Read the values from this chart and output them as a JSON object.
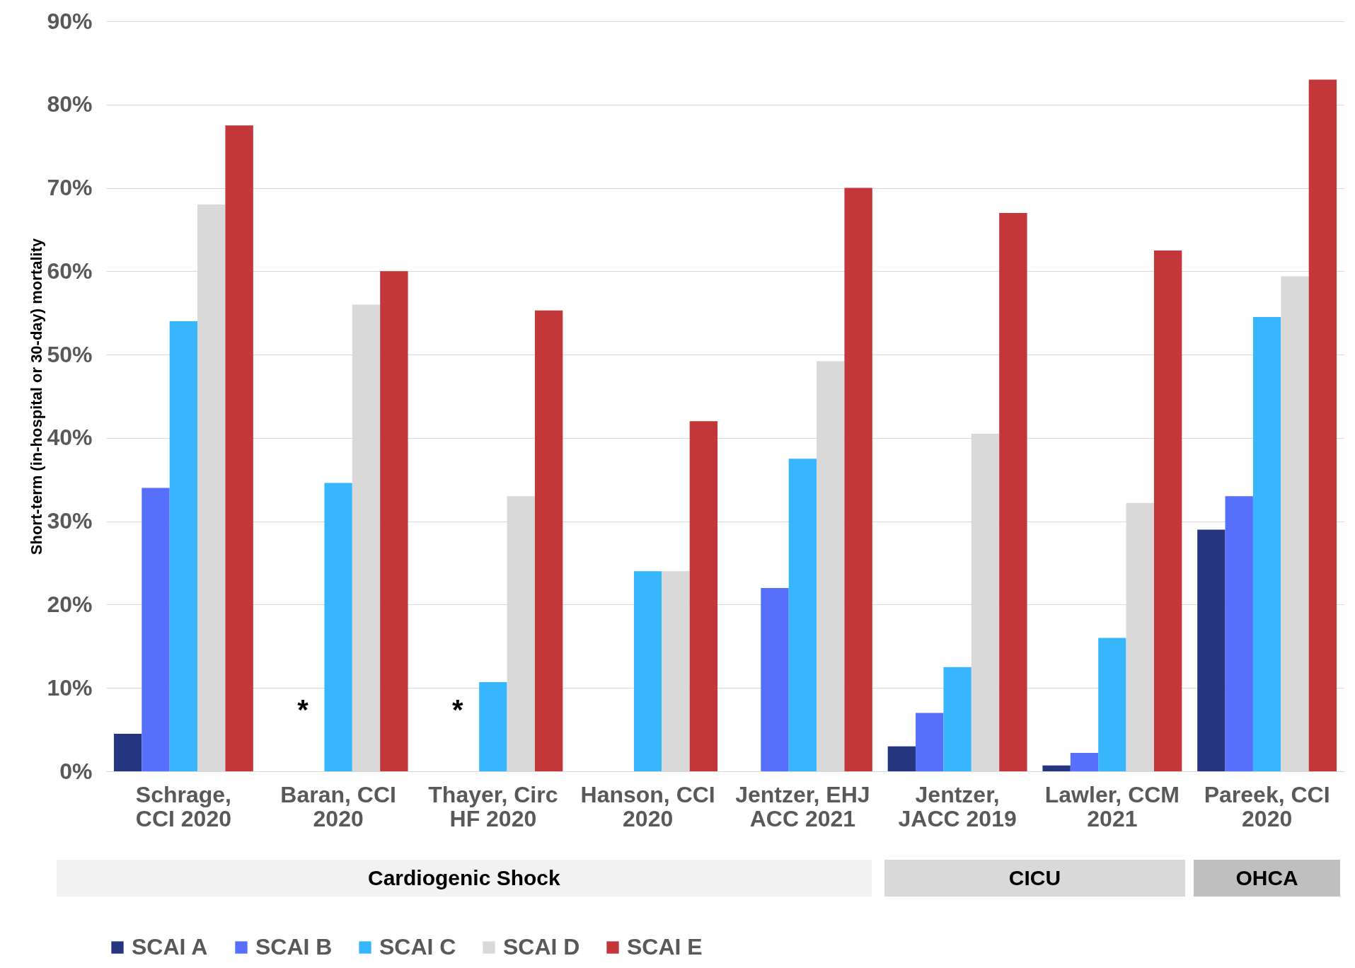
{
  "chart_data": {
    "type": "bar",
    "ylabel": "Short-term (in-hospital or 30-day) mortality",
    "categories": [
      "Schrage, CCI 2020",
      "Baran, CCI 2020",
      "Thayer, Circ HF 2020",
      "Hanson, CCI 2020",
      "Jentzer, EHJ ACC 2021",
      "Jentzer, JACC 2019",
      "Lawler, CCM 2021",
      "Pareek, CCI 2020"
    ],
    "series": [
      {
        "name": "SCAI A",
        "color": "#263580",
        "values": [
          4.5,
          null,
          null,
          null,
          null,
          3,
          0.7,
          29
        ]
      },
      {
        "name": "SCAI B",
        "color": "#5670fb",
        "values": [
          34,
          null,
          null,
          null,
          22,
          7,
          2.2,
          33
        ]
      },
      {
        "name": "SCAI C",
        "color": "#38b6fd",
        "values": [
          54,
          34.6,
          10.7,
          24,
          37.5,
          12.5,
          16,
          54.5
        ]
      },
      {
        "name": "SCAI D",
        "color": "#d9d9d9",
        "values": [
          68,
          56,
          33,
          24,
          49.2,
          40.5,
          32.2,
          59.4
        ]
      },
      {
        "name": "SCAI E",
        "color": "#c3373a",
        "values": [
          77.5,
          60,
          55.3,
          42,
          70,
          67,
          62.5,
          83
        ]
      }
    ],
    "ylim": [
      0,
      90
    ],
    "yticks": [
      {
        "value": 0,
        "label": "0%"
      },
      {
        "value": 10,
        "label": "10%"
      },
      {
        "value": 20,
        "label": "20%"
      },
      {
        "value": 30,
        "label": "30%"
      },
      {
        "value": 40,
        "label": "40%"
      },
      {
        "value": 50,
        "label": "50%"
      },
      {
        "value": 60,
        "label": "60%"
      },
      {
        "value": 70,
        "label": "70%"
      },
      {
        "value": 80,
        "label": "80%"
      },
      {
        "value": 90,
        "label": "90%"
      }
    ],
    "grid": "y",
    "legend": "bottom",
    "annotations": [
      "*",
      "*",
      "Cardiogenic Shock",
      "CICU",
      "OHCA"
    ]
  }
}
